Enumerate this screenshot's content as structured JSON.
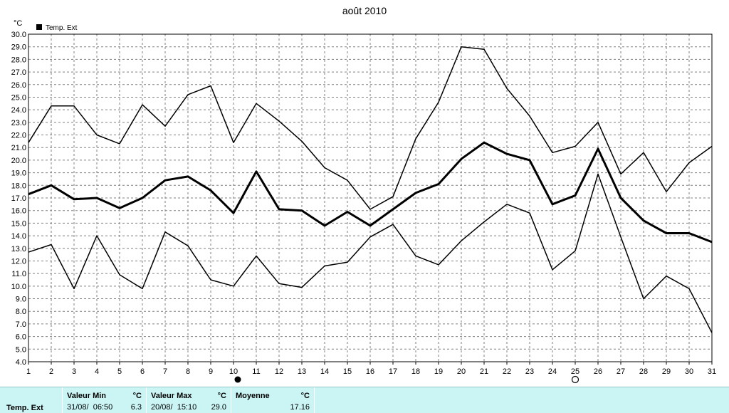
{
  "chart_data": {
    "type": "line",
    "title": "août 2010",
    "unit": "°C",
    "legend": "Temp. Ext",
    "legend_position": "top-left",
    "grid": true,
    "x": [
      1,
      2,
      3,
      4,
      5,
      6,
      7,
      8,
      9,
      10,
      11,
      12,
      13,
      14,
      15,
      16,
      17,
      18,
      19,
      20,
      21,
      22,
      23,
      24,
      25,
      26,
      27,
      28,
      29,
      30,
      31
    ],
    "xlim": [
      1,
      31
    ],
    "ylim": [
      4.0,
      30.0
    ],
    "yticks": [
      "4.0",
      "5.0",
      "6.0",
      "7.0",
      "8.0",
      "9.0",
      "10.0",
      "11.0",
      "12.0",
      "13.0",
      "14.0",
      "15.0",
      "16.0",
      "17.0",
      "18.0",
      "19.0",
      "20.0",
      "21.0",
      "22.0",
      "23.0",
      "24.0",
      "25.0",
      "26.0",
      "27.0",
      "28.0",
      "29.0",
      "30.0"
    ],
    "series": [
      {
        "role": "max",
        "color": "#000000",
        "width": 1.5,
        "values": [
          21.4,
          24.3,
          24.3,
          22.0,
          21.3,
          24.4,
          22.7,
          25.2,
          25.9,
          21.4,
          24.5,
          23.1,
          21.5,
          19.4,
          18.4,
          16.1,
          17.1,
          21.7,
          24.6,
          29.0,
          28.8,
          25.7,
          23.5,
          20.6,
          21.1,
          23.0,
          18.9,
          20.6,
          17.5,
          19.8,
          21.1
        ]
      },
      {
        "role": "mean",
        "color": "#000000",
        "width": 3,
        "values": [
          17.3,
          18.0,
          16.9,
          17.0,
          16.2,
          17.0,
          18.4,
          18.7,
          17.6,
          15.8,
          19.1,
          16.1,
          16.0,
          14.8,
          15.9,
          14.8,
          16.1,
          17.4,
          18.1,
          20.1,
          21.4,
          20.5,
          20.0,
          16.5,
          17.2,
          20.9,
          17.0,
          15.2,
          14.2,
          14.2,
          13.5
        ]
      },
      {
        "role": "min",
        "color": "#000000",
        "width": 1.5,
        "values": [
          12.7,
          13.3,
          9.8,
          14.0,
          10.9,
          9.8,
          14.3,
          13.2,
          10.5,
          10.0,
          12.4,
          10.2,
          9.9,
          11.6,
          11.9,
          13.9,
          14.9,
          12.4,
          11.7,
          13.6,
          15.1,
          16.5,
          15.8,
          11.3,
          12.8,
          18.9,
          13.9,
          9.0,
          10.8,
          9.8,
          6.3
        ]
      }
    ],
    "markers": [
      {
        "x": 10,
        "symbol": "filled-circle"
      },
      {
        "x": 25,
        "symbol": "open-circle"
      }
    ]
  },
  "summary": {
    "sensor": "Temp. Ext",
    "min": {
      "label": "Valeur Min",
      "unit": "°C",
      "datetime": "31/08/  06:50",
      "value": "6.3"
    },
    "max": {
      "label": "Valeur Max",
      "unit": "°C",
      "datetime": "20/08/  15:10",
      "value": "29.0"
    },
    "mean": {
      "label": "Moyenne",
      "unit": "°C",
      "value": "17.16"
    }
  }
}
